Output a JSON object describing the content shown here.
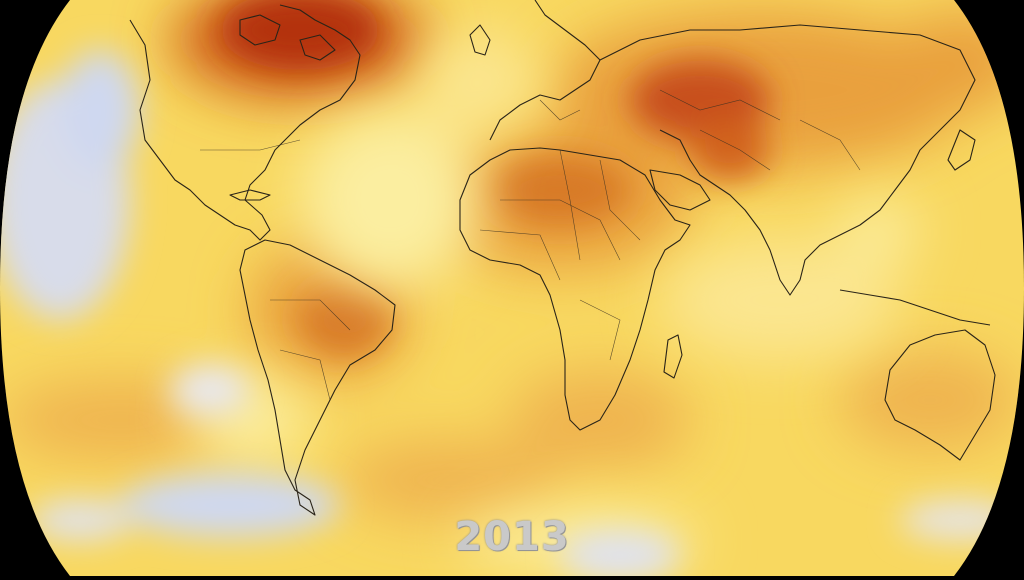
{
  "map": {
    "year_label": "2013",
    "palette": {
      "background": "#000000",
      "base": "#f8d860",
      "light_yellow": "#fbeea0",
      "orange": "#e9a03c",
      "red_orange": "#d2641e",
      "dark_red": "#b43010",
      "cold_blue": "#cfd8f0",
      "coastline": "#2a2418"
    },
    "regions": {
      "hot": [
        "northern-canada",
        "central-asia",
        "north-africa",
        "amazon"
      ],
      "cold": [
        "north-pacific",
        "southern-ocean",
        "south-pacific"
      ]
    }
  }
}
